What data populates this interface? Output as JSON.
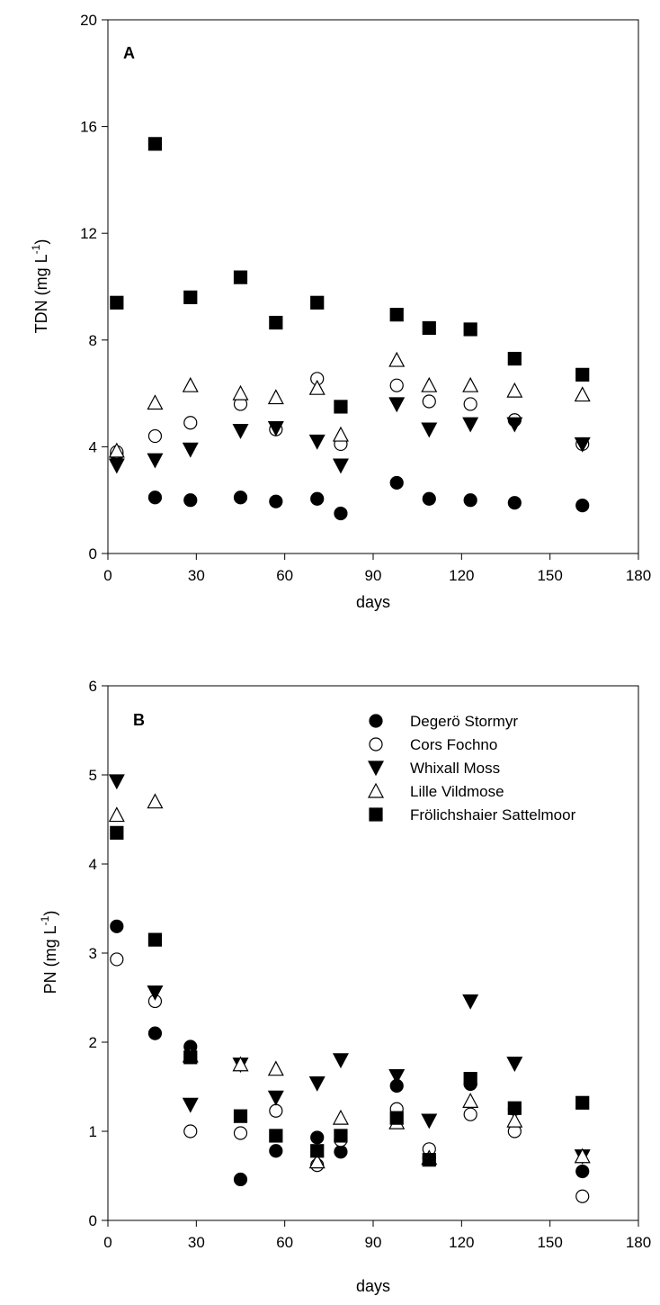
{
  "chart_data": [
    {
      "type": "scatter",
      "panel_label": "A",
      "xlabel": "days",
      "ylabel": "TDN (mg L",
      "ylabel_sup": "-1",
      "ylabel_suffix": ")",
      "xlim": [
        0,
        180
      ],
      "ylim": [
        0,
        20
      ],
      "x_ticks": [
        0,
        30,
        60,
        90,
        120,
        150,
        180
      ],
      "y_ticks": [
        0,
        4,
        8,
        12,
        16,
        20
      ],
      "grid": false,
      "legend": null,
      "series": [
        {
          "name": "Degerö Stormyr",
          "marker": "circle-filled",
          "x": [
            3,
            16,
            28,
            45,
            57,
            71,
            79,
            98,
            109,
            123,
            138,
            161
          ],
          "y": [
            3.7,
            2.1,
            2.0,
            2.1,
            1.95,
            2.05,
            1.5,
            2.65,
            2.05,
            2.0,
            1.9,
            1.8
          ]
        },
        {
          "name": "Cors Fochno",
          "marker": "circle-open",
          "x": [
            3,
            16,
            28,
            45,
            57,
            71,
            79,
            98,
            109,
            123,
            138,
            161
          ],
          "y": [
            3.8,
            4.4,
            4.9,
            5.6,
            4.65,
            6.55,
            4.1,
            6.3,
            5.7,
            5.6,
            5.0,
            4.1
          ]
        },
        {
          "name": "Whixall Moss",
          "marker": "triangle-down-filled",
          "x": [
            3,
            16,
            28,
            45,
            57,
            71,
            79,
            98,
            109,
            123,
            138,
            161
          ],
          "y": [
            3.3,
            3.5,
            3.9,
            4.6,
            4.7,
            4.2,
            3.3,
            5.6,
            4.65,
            4.85,
            4.85,
            4.1
          ]
        },
        {
          "name": "Lille Vildmose",
          "marker": "triangle-up-open",
          "x": [
            3,
            16,
            28,
            45,
            57,
            71,
            79,
            98,
            109,
            123,
            138,
            161
          ],
          "y": [
            3.85,
            5.65,
            6.3,
            6.0,
            5.85,
            6.2,
            4.45,
            7.25,
            6.3,
            6.3,
            6.1,
            5.95
          ]
        },
        {
          "name": "Frölichshaier Sattelmoor",
          "marker": "square-filled",
          "x": [
            3,
            16,
            28,
            45,
            57,
            71,
            79,
            98,
            109,
            123,
            138,
            161
          ],
          "y": [
            9.4,
            15.35,
            9.6,
            10.35,
            8.65,
            9.4,
            5.5,
            8.95,
            8.45,
            8.4,
            7.3,
            6.7
          ]
        }
      ]
    },
    {
      "type": "scatter",
      "panel_label": "B",
      "xlabel": "days",
      "ylabel": "PN (mg L",
      "ylabel_sup": "-1",
      "ylabel_suffix": ")",
      "xlim": [
        0,
        180
      ],
      "ylim": [
        0,
        6
      ],
      "x_ticks": [
        0,
        30,
        60,
        90,
        120,
        150,
        180
      ],
      "y_ticks": [
        0,
        1,
        2,
        3,
        4,
        5,
        6
      ],
      "grid": false,
      "legend": "top-right",
      "series": [
        {
          "name": "Degerö Stormyr",
          "marker": "circle-filled",
          "x": [
            3,
            16,
            28,
            45,
            57,
            71,
            79,
            98,
            109,
            123,
            138,
            161
          ],
          "y": [
            3.3,
            2.1,
            1.95,
            0.46,
            0.78,
            0.93,
            0.77,
            1.51,
            0.7,
            1.53,
            1.25,
            0.55
          ]
        },
        {
          "name": "Cors Fochno",
          "marker": "circle-open",
          "x": [
            3,
            16,
            28,
            45,
            57,
            71,
            79,
            98,
            109,
            123,
            138,
            161
          ],
          "y": [
            2.93,
            2.46,
            1.0,
            0.98,
            1.23,
            0.62,
            0.9,
            1.25,
            0.8,
            1.19,
            1.0,
            0.27
          ]
        },
        {
          "name": "Whixall Moss",
          "marker": "triangle-down-filled",
          "x": [
            3,
            16,
            28,
            45,
            57,
            71,
            79,
            98,
            109,
            123,
            138,
            161
          ],
          "y": [
            4.93,
            2.56,
            1.3,
            1.75,
            1.38,
            1.54,
            1.8,
            1.62,
            1.12,
            2.46,
            1.76,
            0.72
          ]
        },
        {
          "name": "Lille Vildmose",
          "marker": "triangle-up-open",
          "x": [
            3,
            16,
            28,
            45,
            57,
            71,
            79,
            98,
            109,
            123,
            138,
            161
          ],
          "y": [
            4.55,
            4.7,
            1.85,
            1.75,
            1.7,
            0.66,
            1.15,
            1.1,
            0.7,
            1.34,
            1.12,
            0.72
          ]
        },
        {
          "name": "Frölichshaier Sattelmoor",
          "marker": "square-filled",
          "x": [
            3,
            16,
            28,
            45,
            57,
            71,
            79,
            98,
            109,
            123,
            138,
            161
          ],
          "y": [
            4.35,
            3.15,
            1.83,
            1.17,
            0.95,
            0.78,
            0.95,
            1.15,
            0.68,
            1.59,
            1.26,
            1.32
          ]
        }
      ]
    }
  ]
}
